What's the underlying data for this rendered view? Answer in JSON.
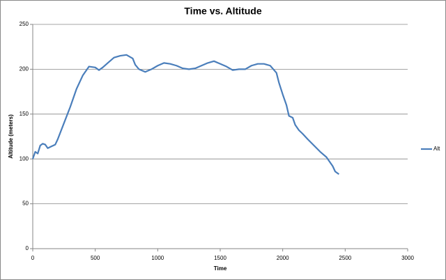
{
  "chart_data": {
    "type": "line",
    "title": "Time vs. Altitude",
    "xlabel": "Time",
    "ylabel": "Altitude (meters)",
    "x": [
      0,
      20,
      40,
      60,
      80,
      100,
      120,
      150,
      180,
      200,
      250,
      300,
      350,
      400,
      450,
      500,
      530,
      560,
      600,
      650,
      700,
      750,
      800,
      820,
      850,
      900,
      950,
      1000,
      1050,
      1100,
      1150,
      1200,
      1250,
      1300,
      1350,
      1400,
      1450,
      1500,
      1550,
      1600,
      1650,
      1700,
      1750,
      1800,
      1850,
      1900,
      1950,
      1970,
      2000,
      2030,
      2050,
      2080,
      2100,
      2130,
      2160,
      2200,
      2250,
      2300,
      2350,
      2380,
      2400,
      2420,
      2450
    ],
    "series": [
      {
        "name": "Alt",
        "color": "#4a7ebb",
        "values": [
          100,
          108,
          106,
          115,
          117,
          116,
          112,
          114,
          116,
          122,
          140,
          158,
          178,
          193,
          203,
          202,
          199,
          202,
          207,
          213,
          215,
          216,
          212,
          205,
          200,
          197,
          200,
          204,
          207,
          206,
          204,
          201,
          200,
          201,
          204,
          207,
          209,
          206,
          203,
          199,
          200,
          200,
          204,
          206,
          206,
          204,
          196,
          185,
          172,
          160,
          148,
          146,
          138,
          132,
          128,
          122,
          115,
          108,
          102,
          96,
          92,
          86,
          83
        ]
      }
    ],
    "xlim": [
      0,
      3000
    ],
    "xticks": [
      0,
      500,
      1000,
      1500,
      2000,
      2500,
      3000
    ],
    "ylim": [
      0,
      250
    ],
    "yticks": [
      0,
      50,
      100,
      150,
      200,
      250
    ],
    "grid": true,
    "legend": "right"
  }
}
